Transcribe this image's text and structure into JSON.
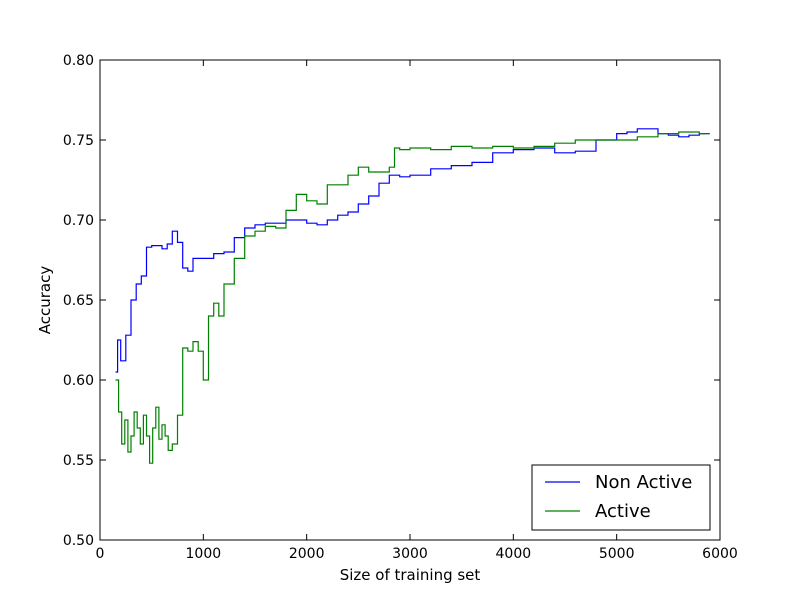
{
  "chart_data": {
    "type": "line",
    "xlabel": "Size of training set",
    "ylabel": "Accuracy",
    "xlim": [
      0,
      6000
    ],
    "ylim": [
      0.5,
      0.8
    ],
    "xticks": [
      0,
      1000,
      2000,
      3000,
      4000,
      5000,
      6000
    ],
    "xtick_labels": [
      "0",
      "1000",
      "2000",
      "3000",
      "4000",
      "5000",
      "6000"
    ],
    "yticks": [
      0.5,
      0.55,
      0.6,
      0.65,
      0.7,
      0.75,
      0.8
    ],
    "ytick_labels": [
      "0.50",
      "0.55",
      "0.60",
      "0.65",
      "0.70",
      "0.75",
      "0.80"
    ],
    "grid": false,
    "legend_position": "bottom-right",
    "series": [
      {
        "name": "Non Active",
        "color": "#0000ff",
        "x": [
          150,
          170,
          200,
          250,
          300,
          350,
          400,
          450,
          500,
          550,
          600,
          650,
          700,
          750,
          800,
          850,
          900,
          1000,
          1100,
          1200,
          1300,
          1400,
          1500,
          1600,
          1700,
          1800,
          1900,
          2000,
          2100,
          2200,
          2300,
          2400,
          2500,
          2600,
          2700,
          2800,
          2900,
          3000,
          3200,
          3400,
          3600,
          3800,
          4000,
          4200,
          4400,
          4600,
          4800,
          5000,
          5100,
          5200,
          5300,
          5400,
          5500,
          5600,
          5700,
          5800,
          5900
        ],
        "y": [
          0.605,
          0.625,
          0.612,
          0.628,
          0.65,
          0.66,
          0.665,
          0.683,
          0.684,
          0.684,
          0.682,
          0.685,
          0.693,
          0.686,
          0.67,
          0.668,
          0.676,
          0.676,
          0.679,
          0.68,
          0.689,
          0.695,
          0.697,
          0.698,
          0.698,
          0.7,
          0.7,
          0.698,
          0.697,
          0.7,
          0.703,
          0.705,
          0.71,
          0.715,
          0.723,
          0.728,
          0.727,
          0.728,
          0.732,
          0.734,
          0.736,
          0.742,
          0.744,
          0.745,
          0.742,
          0.743,
          0.75,
          0.754,
          0.755,
          0.757,
          0.757,
          0.754,
          0.753,
          0.752,
          0.753,
          0.754,
          0.754
        ]
      },
      {
        "name": "Active",
        "color": "#008000",
        "x": [
          150,
          180,
          210,
          240,
          270,
          300,
          330,
          360,
          390,
          420,
          450,
          480,
          510,
          540,
          570,
          600,
          630,
          660,
          700,
          750,
          800,
          850,
          900,
          950,
          1000,
          1050,
          1100,
          1150,
          1200,
          1300,
          1400,
          1500,
          1600,
          1700,
          1800,
          1900,
          2000,
          2100,
          2200,
          2300,
          2400,
          2500,
          2600,
          2700,
          2800,
          2850,
          2900,
          3000,
          3200,
          3400,
          3600,
          3800,
          4000,
          4200,
          4400,
          4600,
          4800,
          5000,
          5200,
          5400,
          5600,
          5800,
          5900
        ],
        "y": [
          0.6,
          0.58,
          0.56,
          0.575,
          0.555,
          0.565,
          0.58,
          0.57,
          0.56,
          0.578,
          0.565,
          0.548,
          0.57,
          0.583,
          0.563,
          0.572,
          0.565,
          0.556,
          0.56,
          0.578,
          0.62,
          0.618,
          0.624,
          0.618,
          0.6,
          0.64,
          0.648,
          0.64,
          0.66,
          0.676,
          0.69,
          0.693,
          0.696,
          0.695,
          0.706,
          0.716,
          0.712,
          0.71,
          0.722,
          0.722,
          0.728,
          0.733,
          0.73,
          0.73,
          0.733,
          0.745,
          0.744,
          0.745,
          0.744,
          0.746,
          0.745,
          0.746,
          0.745,
          0.746,
          0.748,
          0.75,
          0.75,
          0.75,
          0.752,
          0.754,
          0.755,
          0.754,
          0.754
        ]
      }
    ]
  }
}
